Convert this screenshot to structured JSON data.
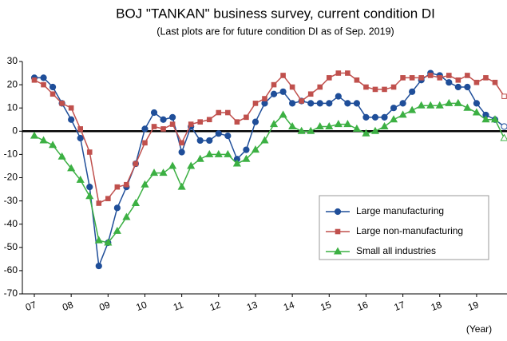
{
  "chart_data": {
    "type": "line",
    "title": "BOJ \"TANKAN\" business survey, current condition DI",
    "subtitle": "(Last plots are for future condition DI as of Sep. 2019)",
    "x_label": "(Year)",
    "categories": [
      "07",
      null,
      null,
      null,
      "08",
      null,
      null,
      null,
      "09",
      null,
      null,
      null,
      "10",
      null,
      null,
      null,
      "11",
      null,
      null,
      null,
      "12",
      null,
      null,
      null,
      "13",
      null,
      null,
      null,
      "14",
      null,
      null,
      null,
      "15",
      null,
      null,
      null,
      "16",
      null,
      null,
      null,
      "17",
      null,
      null,
      null,
      "18",
      null,
      null,
      null,
      "19",
      null,
      null,
      null
    ],
    "series": [
      {
        "name": "Large manufacturing",
        "color": "#1f4e99",
        "marker": "circle",
        "values": [
          23,
          23,
          19,
          12,
          5,
          -3,
          -24,
          -58,
          -48,
          -33,
          -24,
          -14,
          1,
          8,
          5,
          6,
          -9,
          2,
          -4,
          -4,
          -1,
          -2,
          -12,
          -8,
          4,
          12,
          16,
          17,
          12,
          13,
          12,
          12,
          12,
          15,
          12,
          12,
          6,
          6,
          6,
          10,
          12,
          17,
          22,
          25,
          24,
          21,
          19,
          19,
          12,
          7,
          5,
          2
        ]
      },
      {
        "name": "Large non-manufacturing",
        "color": "#c0504d",
        "marker": "square",
        "values": [
          22,
          20,
          16,
          12,
          10,
          1,
          -9,
          -31,
          -29,
          -24,
          -23,
          -14,
          -5,
          2,
          1,
          3,
          -5,
          3,
          4,
          5,
          8,
          8,
          4,
          6,
          12,
          14,
          20,
          24,
          19,
          13,
          16,
          19,
          23,
          25,
          25,
          22,
          19,
          18,
          18,
          19,
          23,
          23,
          23,
          24,
          23,
          24,
          22,
          24,
          21,
          23,
          21,
          15
        ]
      },
      {
        "name": "Small all industries",
        "color": "#3cb043",
        "marker": "triangle",
        "values": [
          -2,
          -4,
          -6,
          -11,
          -16,
          -21,
          -28,
          -47,
          -48,
          -43,
          -37,
          -31,
          -23,
          -18,
          -18,
          -15,
          -24,
          -15,
          -12,
          -10,
          -10,
          -10,
          -14,
          -12,
          -8,
          -4,
          3,
          7,
          2,
          0,
          0,
          2,
          2,
          3,
          3,
          1,
          -1,
          0,
          2,
          5,
          7,
          9,
          11,
          11,
          11,
          12,
          12,
          10,
          8,
          5,
          5,
          -3
        ]
      }
    ],
    "hollow_last": true,
    "zero_line": true,
    "ylim": [
      -70,
      30
    ],
    "yticks": [
      -70,
      -60,
      -50,
      -40,
      -30,
      -20,
      -10,
      0,
      10,
      20,
      30
    ],
    "legend": "lower right"
  }
}
